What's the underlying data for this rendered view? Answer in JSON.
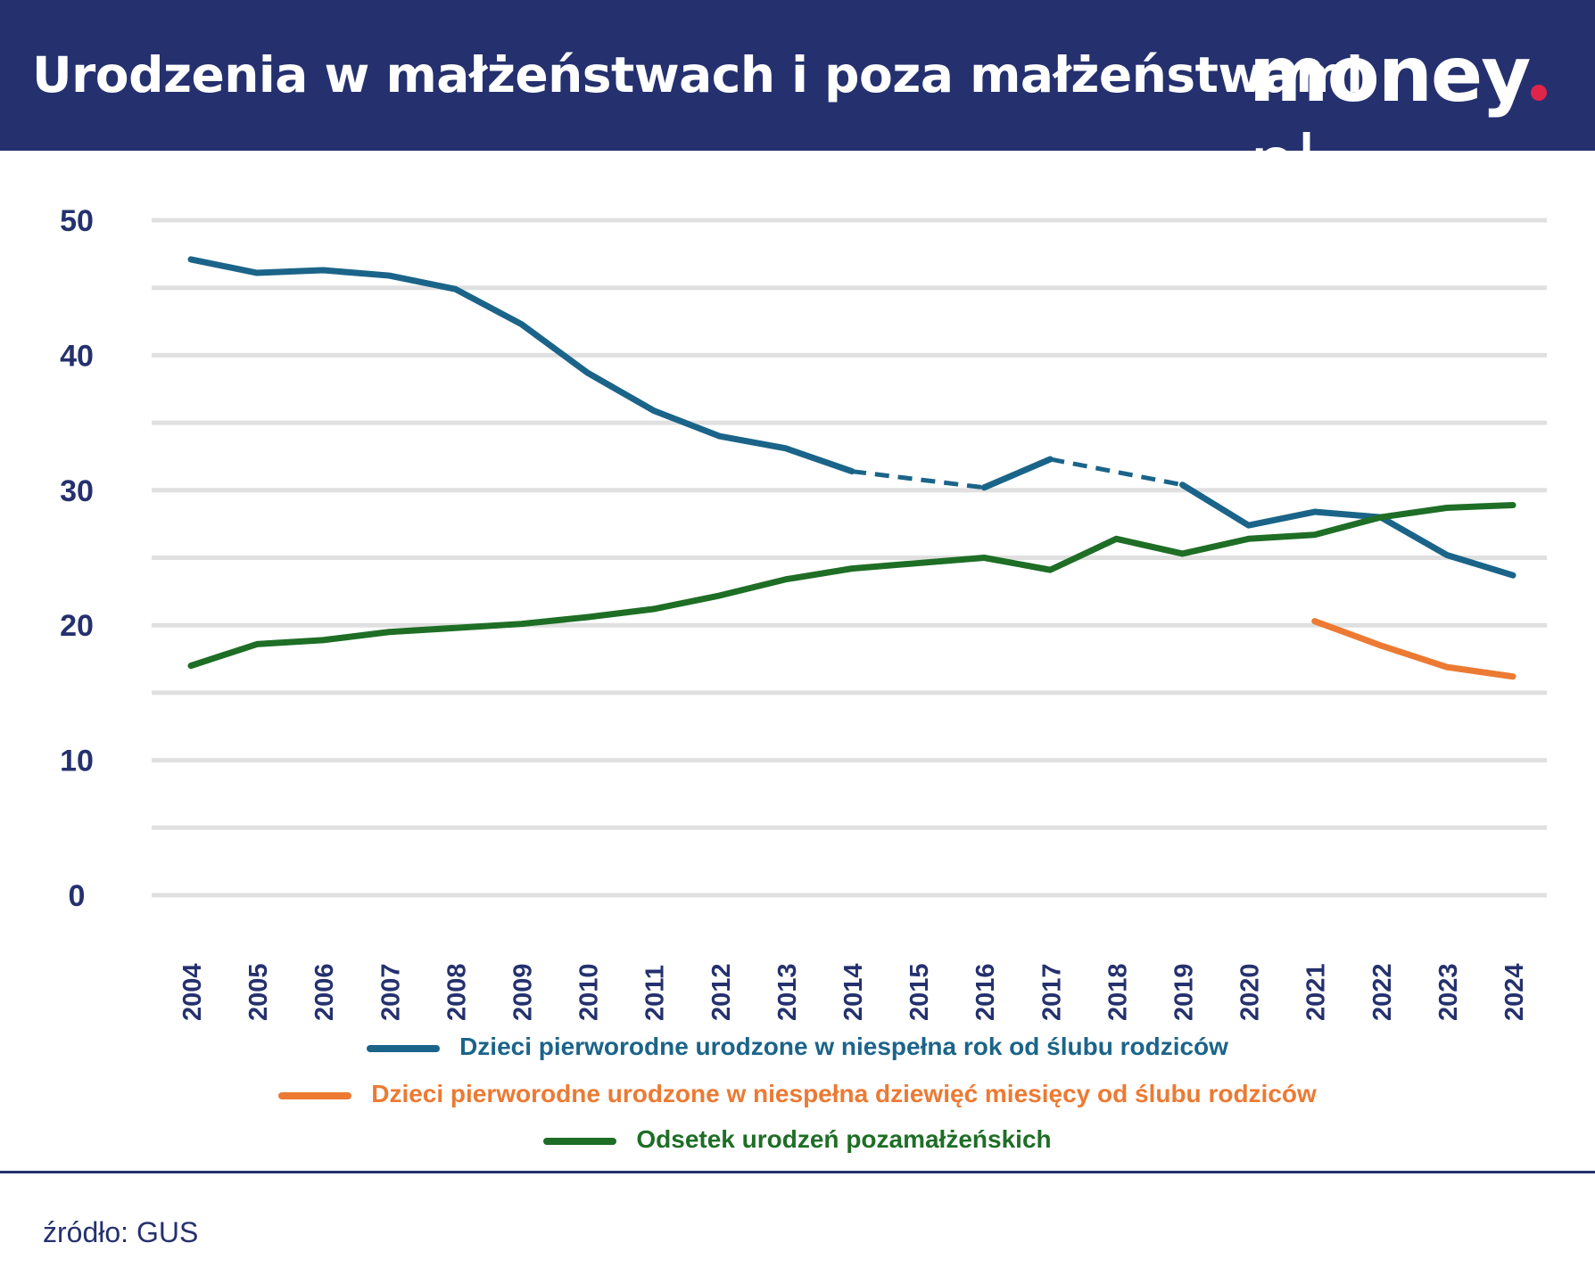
{
  "header": {
    "title": "Urodzenia w małżeństwach i poza małżeństwami",
    "logo": "money.pl",
    "background": "#25316e"
  },
  "chart_data": {
    "type": "line",
    "title": "Urodzenia w małżeństwach i poza małżeństwami",
    "xlabel": "",
    "ylabel": "",
    "ylim": [
      0,
      50
    ],
    "yticks": [
      0,
      10,
      20,
      30,
      40,
      50
    ],
    "grid": true,
    "legend": "bottom",
    "categories": [
      "2004",
      "2005",
      "2006",
      "2007",
      "2008",
      "2009",
      "2010",
      "2011",
      "2012",
      "2013",
      "2014",
      "2015",
      "2016",
      "2017",
      "2018",
      "2019",
      "2020",
      "2021",
      "2022",
      "2023",
      "2024"
    ],
    "series": [
      {
        "name": "Dzieci pierworodne urodzone w niespełna rok od ślubu rodziców",
        "color": "#1b6489",
        "values": [
          47.1,
          46.1,
          46.3,
          45.9,
          44.9,
          42.3,
          38.7,
          35.9,
          34.0,
          33.1,
          31.4,
          null,
          30.2,
          32.3,
          null,
          30.4,
          27.4,
          28.4,
          28.0,
          25.2,
          23.7
        ]
      },
      {
        "name": "Dzieci pierworodne urodzone w niespełna dziewięć miesięcy od ślubu rodziców",
        "color": "#ec7a33",
        "values": [
          null,
          null,
          null,
          null,
          null,
          null,
          null,
          null,
          null,
          null,
          null,
          null,
          null,
          null,
          null,
          null,
          null,
          20.3,
          18.5,
          16.9,
          16.2
        ]
      },
      {
        "name": "Odsetek urodzeń pozamałżeńskich",
        "color": "#1e6e26",
        "values": [
          17.0,
          18.6,
          18.9,
          19.5,
          19.8,
          20.1,
          20.6,
          21.2,
          22.2,
          23.4,
          24.2,
          24.6,
          25.0,
          24.1,
          26.4,
          25.3,
          26.4,
          26.7,
          28.0,
          28.7,
          28.9
        ]
      }
    ]
  },
  "footer": {
    "source": "źródło: GUS"
  }
}
